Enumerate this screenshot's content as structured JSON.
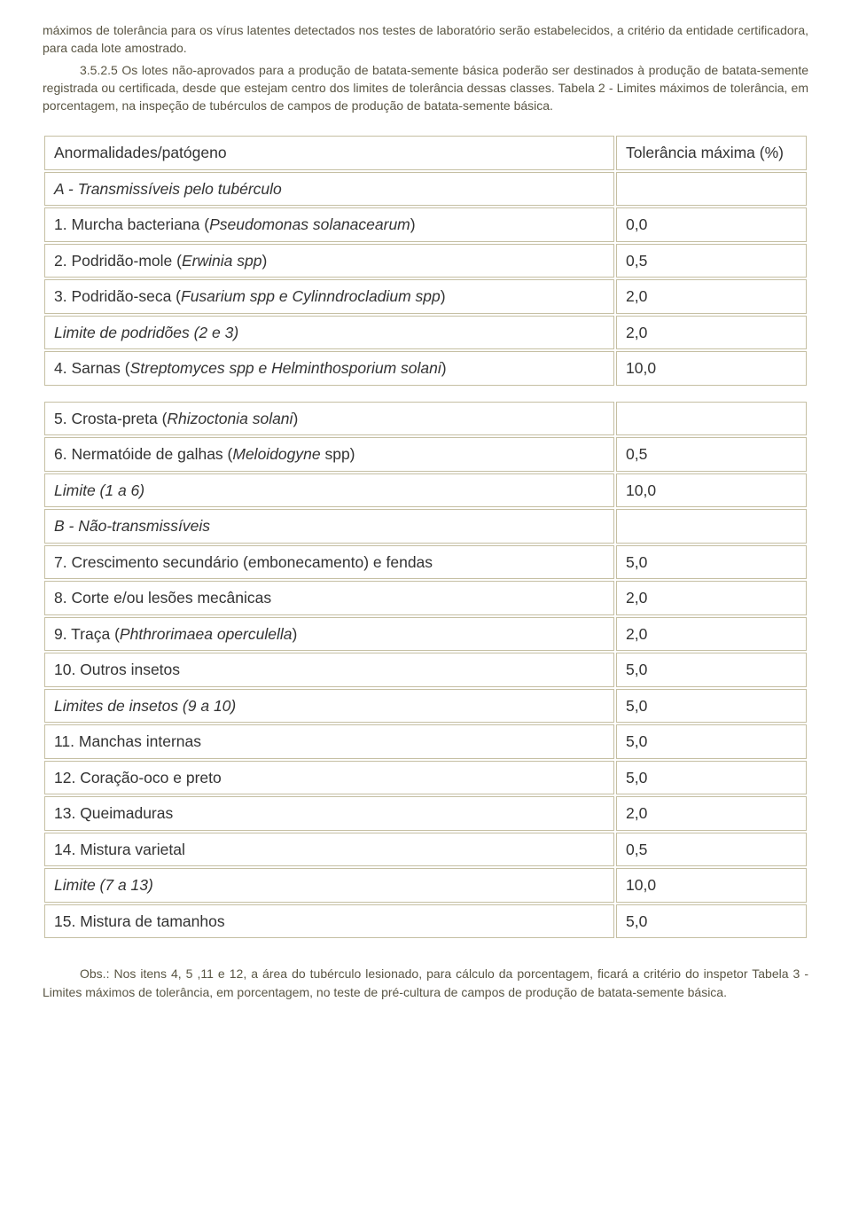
{
  "intro": {
    "p1": "máximos de tolerância para os vírus latentes detectados nos testes de laboratório serão estabelecidos, a critério da entidade certificadora, para cada lote amostrado.",
    "num": "3.5.2.5 Os lotes não-aprovados para a produção de batata-semente básica poderão ser destinados à produção de batata-semente registrada ou certificada, desde que estejam centro dos limites de tolerância dessas classes.  Tabela 2 - Limites máximos de tolerância, em porcentagem, na inspeção de tubérculos de campos de produção de batata-semente básica."
  },
  "table": {
    "header": {
      "c1": "Anormalidades/patógeno",
      "c2": "Tolerância máxima (%)"
    },
    "rows": [
      {
        "c1_html": "<span class=\"italic\">A - Transmissíveis pelo tubérculo</span>",
        "c2": ""
      },
      {
        "c1_html": "1. Murcha bacteriana (<span class=\"italic\">Pseudomonas solanacearum</span>)",
        "c2": "0,0"
      },
      {
        "c1_html": "2. Podridão-mole (<span class=\"italic\">Erwinia spp</span>)",
        "c2": "0,5"
      },
      {
        "c1_html": "3. Podridão-seca (<span class=\"italic\">Fusarium spp e Cylinndrocladium spp</span>)",
        "c2": "2,0"
      },
      {
        "c1_html": "<span class=\"italic\">Limite de podridões (2 e 3)</span>",
        "c2": "2,0"
      },
      {
        "c1_html": "4. Sarnas (<span class=\"italic\">Streptomyces spp e Helminthosporium solani</span>)",
        "c2": "10,0"
      },
      {
        "gap": true
      },
      {
        "c1_html": "5. Crosta-preta (<span class=\"italic\">Rhizoctonia solani</span>)",
        "c2": ""
      },
      {
        "c1_html": "6. Nermatóide de galhas (<span class=\"italic\">Meloidogyne</span> spp)",
        "c2": "0,5"
      },
      {
        "c1_html": "<span class=\"italic\">Limite (1 a 6)</span>",
        "c2": "10,0"
      },
      {
        "c1_html": "<span class=\"italic\">B - Não-transmissíveis</span>",
        "c2": ""
      },
      {
        "c1_html": "7. Crescimento secundário (embonecamento) e fendas",
        "c2": "5,0"
      },
      {
        "c1_html": "8. Corte e/ou lesões mecânicas",
        "c2": "2,0"
      },
      {
        "c1_html": "9. Traça (<span class=\"italic\">Phthrorimaea operculella</span>)",
        "c2": "2,0"
      },
      {
        "c1_html": "10. Outros insetos",
        "c2": "5,0"
      },
      {
        "c1_html": "<span class=\"italic\">Limites de insetos (9 a 10)</span>",
        "c2": "5,0"
      },
      {
        "c1_html": "11. Manchas internas",
        "c2": "5,0"
      },
      {
        "c1_html": "12. Coração-oco e preto",
        "c2": "5,0"
      },
      {
        "c1_html": "13. Queimaduras",
        "c2": "2,0"
      },
      {
        "c1_html": "14. Mistura varietal",
        "c2": "0,5"
      },
      {
        "c1_html": "<span class=\"italic\">Limite (7 a 13)</span>",
        "c2": "10,0"
      },
      {
        "c1_html": "15. Mistura de tamanhos",
        "c2": "5,0"
      }
    ]
  },
  "footnote": "Obs.: Nos itens 4, 5 ,11 e 12, a área do tubérculo lesionado, para cálculo da porcentagem, ficará a critério do inspetor Tabela 3 - Limites máximos de tolerância, em porcentagem, no teste de pré-cultura de campos de produção de batata-semente básica."
}
